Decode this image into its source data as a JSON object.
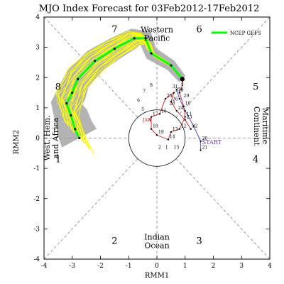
{
  "chart_data": {
    "type": "line",
    "title": "MJO Index Forecast for 03Feb2012-17Feb2012",
    "xlabel": "RMM1",
    "ylabel": "RMM2",
    "xlim": [
      -4,
      4
    ],
    "ylim": [
      -4,
      4
    ],
    "x_ticks": [
      -4,
      -3,
      -2,
      -1,
      0,
      1,
      2,
      3,
      4
    ],
    "y_ticks": [
      -4,
      -3,
      -2,
      -1,
      0,
      1,
      2,
      3,
      4
    ],
    "grid": false,
    "legend": {
      "placement": "top-right",
      "entries": [
        {
          "label": "NCEP GEFS",
          "color": "#00ff00"
        }
      ]
    },
    "phase_numbers": [
      {
        "label": "1",
        "x": -3.5,
        "y": -0.8
      },
      {
        "label": "2",
        "x": -1.5,
        "y": -3.5
      },
      {
        "label": "3",
        "x": 1.5,
        "y": -3.5
      },
      {
        "label": "4",
        "x": 3.5,
        "y": -0.8
      },
      {
        "label": "5",
        "x": 3.5,
        "y": 1.6
      },
      {
        "label": "6",
        "x": 1.5,
        "y": 3.5
      },
      {
        "label": "7",
        "x": -1.5,
        "y": 3.5
      },
      {
        "label": "8",
        "x": -3.5,
        "y": 1.6
      }
    ],
    "region_labels": [
      {
        "lines": [
          "Western",
          "Pacific"
        ],
        "x": 0,
        "y": 3.45,
        "rotate": 0
      },
      {
        "lines": [
          "Indian",
          "Ocean"
        ],
        "x": 0,
        "y": -3.4,
        "rotate": 0
      },
      {
        "lines": [
          "Maritime",
          "Continent"
        ],
        "x": 3.7,
        "y": 0.4,
        "rotate": 90
      },
      {
        "lines": [
          "West. Hem.",
          "and Africa"
        ],
        "x": -3.75,
        "y": 0,
        "rotate": -90
      }
    ],
    "unit_circle_radius": 1,
    "series": [
      {
        "name": "NCEP GEFS",
        "role": "ensemble_mean_forecast",
        "color": "#00ff00",
        "points": [
          {
            "x": 0.9,
            "y": 1.95
          },
          {
            "x": 0.5,
            "y": 2.4
          },
          {
            "x": -0.2,
            "y": 2.8
          },
          {
            "x": -0.4,
            "y": 3.3
          },
          {
            "x": -0.8,
            "y": 3.3
          },
          {
            "x": -1.5,
            "y": 2.95
          },
          {
            "x": -2.2,
            "y": 2.55
          },
          {
            "x": -2.8,
            "y": 1.95
          },
          {
            "x": -3.0,
            "y": 1.5
          },
          {
            "x": -3.2,
            "y": 1.15
          },
          {
            "x": -3.05,
            "y": 0.75
          },
          {
            "x": -2.9,
            "y": 0.3
          },
          {
            "x": -2.75,
            "y": 0.0
          }
        ]
      },
      {
        "role": "observed_blue",
        "color": "#4444cc",
        "points": [
          {
            "x": 1.55,
            "y": -0.4,
            "label": "21"
          },
          {
            "x": 1.55,
            "y": -0.1,
            "label": "20"
          },
          {
            "x": 1.3,
            "y": 0.4
          },
          {
            "x": 1.0,
            "y": 0.9
          },
          {
            "x": 0.8,
            "y": 1.3
          },
          {
            "x": 0.7,
            "y": 1.6
          }
        ]
      },
      {
        "role": "observed_red",
        "color": "#cc2222",
        "points": [
          {
            "x": 1.2,
            "y": 0.3,
            "label": "22"
          },
          {
            "x": 1.0,
            "y": 0.6,
            "label": "23"
          },
          {
            "x": 0.7,
            "y": 0.9,
            "label": "24"
          },
          {
            "x": 0.5,
            "y": 1.2,
            "label": "26"
          },
          {
            "x": 0.6,
            "y": 1.5,
            "label": "27"
          },
          {
            "x": 0.3,
            "y": 1.3,
            "label": "25"
          },
          {
            "x": 0.1,
            "y": 0.8,
            "label": "16"
          },
          {
            "x": -0.2,
            "y": 0.7,
            "label": "17"
          },
          {
            "x": -0.2,
            "y": 0.3,
            "label": "18"
          },
          {
            "x": 0.0,
            "y": 0.1,
            "label": "19"
          },
          {
            "x": 0.4,
            "y": -0.05,
            "label": "14"
          },
          {
            "x": 0.5,
            "y": 0.2,
            "label": "13"
          },
          {
            "x": 0.8,
            "y": 0.3,
            "label": "12"
          },
          {
            "x": 1.0,
            "y": 0.7,
            "label": "11"
          },
          {
            "x": 0.95,
            "y": 1.05,
            "label": "10"
          },
          {
            "x": 0.8,
            "y": 1.5,
            "label": "9"
          },
          {
            "x": 0.9,
            "y": 1.75
          },
          {
            "x": 0.9,
            "y": 1.95
          }
        ]
      }
    ],
    "point_labels": [
      {
        "text": "START",
        "x": 1.6,
        "y": -0.2,
        "color": "#6633aa"
      },
      {
        "text": "3",
        "x": 0.85,
        "y": 1.8,
        "color": "#000000"
      },
      {
        "text": "31",
        "x": 0.55,
        "y": 1.65,
        "color": "#000000"
      },
      {
        "text": "30",
        "x": 0.75,
        "y": 1.55,
        "color": "#000000"
      },
      {
        "text": "29",
        "x": 0.95,
        "y": 1.35,
        "color": "#000000"
      },
      {
        "text": "28",
        "x": 0.45,
        "y": 1.1,
        "color": "#000000"
      },
      {
        "text": "8",
        "x": -0.25,
        "y": 1.7,
        "color": "#000000"
      },
      {
        "text": "7",
        "x": -0.5,
        "y": 1.5,
        "color": "#000000"
      },
      {
        "text": "6",
        "x": -0.7,
        "y": 1.2,
        "color": "#000000"
      },
      {
        "text": "5",
        "x": -0.55,
        "y": 0.9,
        "color": "#000000"
      },
      {
        "text": "4",
        "x": -0.3,
        "y": 0.55,
        "color": "#000000"
      },
      {
        "text": "2",
        "x": 0.05,
        "y": -0.35,
        "color": "#000000"
      },
      {
        "text": "1",
        "x": 0.3,
        "y": -0.35,
        "color": "#000000"
      },
      {
        "text": "15",
        "x": 0.6,
        "y": -0.35,
        "color": "#000000"
      },
      {
        "text": "JAN",
        "x": -0.5,
        "y": 0.55,
        "color": "#cc2222"
      }
    ],
    "ensemble_members": 20,
    "uncertainty_band_color": "#999999",
    "ensemble_color": "#ffff00"
  }
}
